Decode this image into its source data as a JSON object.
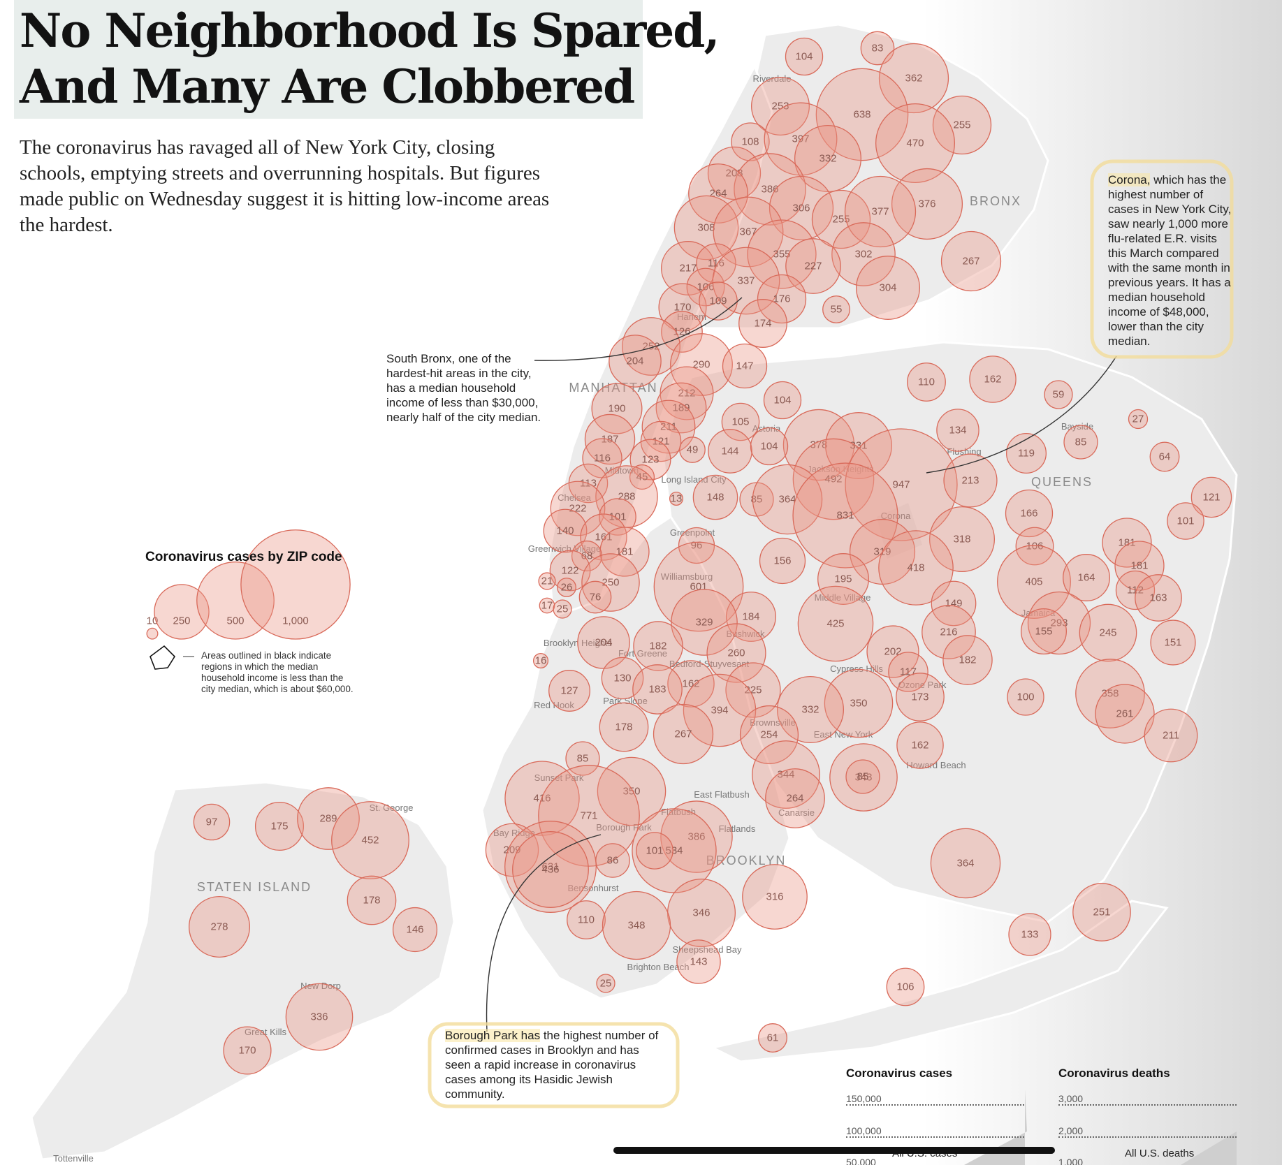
{
  "headline": [
    "No Neighborhood Is Spared,",
    "And Many Are Clobbered"
  ],
  "subhead": "The coronavirus has ravaged all of New York City, closing schools, emptying streets and overrunning hospitals. But figures made public on Wednesday suggest it is hitting low-income areas the hardest.",
  "annotations": {
    "south_bronx": "South Bronx, one of the hardest-hit areas in the city, has a median household income of less than $30,000, nearly half of the city median.",
    "corona_highlight": "Corona,",
    "corona_rest": " which has the highest number of cases in New York City, saw nearly 1,000 more flu-related E.R. visits this March compared with the same month in previous years. It has a median household income of $48,000, lower than the city median.",
    "borough_park_highlight": "Borough Park has",
    "borough_park_rest": " the highest number of confirmed cases in Brooklyn and has seen a rapid increase in coronavirus cases among its Hasidic Jewish community."
  },
  "legend": {
    "title": "Coronavirus cases by ZIP code",
    "sizes": [
      {
        "label": "10",
        "value": 10
      },
      {
        "label": "250",
        "value": 250
      },
      {
        "label": "500",
        "value": 500
      },
      {
        "label": "1,000",
        "value": 1000
      }
    ],
    "note": "Areas outlined in black indicate regions in which the median household income is less than the city median, which is about $60,000."
  },
  "boroughs": [
    "MANHATTAN",
    "BRONX",
    "QUEENS",
    "BROOKLYN",
    "STATEN ISLAND"
  ],
  "places": [
    "Riverdale",
    "Harlem",
    "Midtown",
    "Chelsea",
    "Greenwich Village",
    "Astoria",
    "Long Island City",
    "Greenpoint",
    "Williamsburg",
    "Jackson Heights",
    "Flushing",
    "Bayside",
    "Corona",
    "Middle Village",
    "Jamaica",
    "Bushwick",
    "Brooklyn Heights",
    "Fort Greene",
    "Bedford-Stuyvesant",
    "Cypress Hills",
    "Ozone Park",
    "Red Hook",
    "Park Slope",
    "Brownsville",
    "East New York",
    "Howard Beach",
    "Sunset Park",
    "East Flatbush",
    "Flatbush",
    "Canarsie",
    "Flatlands",
    "Bay Ridge",
    "Borough Park",
    "Bensonhurst",
    "Sheepshead Bay",
    "Brighton Beach",
    "St. George",
    "New Dorp",
    "Great Kills",
    "Tottenville"
  ],
  "zip_cases": [
    104,
    83,
    362,
    253,
    638,
    255,
    108,
    397,
    332,
    470,
    208,
    386,
    376,
    264,
    306,
    255,
    377,
    308,
    367,
    355,
    302,
    267,
    217,
    116,
    227,
    106,
    337,
    304,
    170,
    109,
    176,
    55,
    126,
    174,
    252,
    204,
    290,
    147,
    212,
    110,
    162,
    190,
    189,
    104,
    59,
    211,
    105,
    134,
    27,
    187,
    121,
    378,
    331,
    119,
    85,
    116,
    123,
    49,
    144,
    104,
    64,
    45,
    492,
    947,
    213,
    113,
    288,
    85,
    364,
    148,
    13,
    831,
    166,
    121,
    222,
    101,
    101,
    140,
    161,
    318,
    106,
    181,
    96,
    319,
    181,
    68,
    418,
    405,
    122,
    181,
    250,
    156,
    195,
    164,
    112,
    21,
    26,
    601,
    163,
    76,
    17,
    25,
    184,
    329,
    149,
    425,
    293,
    155,
    245,
    151,
    204,
    182,
    260,
    16,
    202,
    216,
    182,
    130,
    162,
    117,
    173,
    127,
    183,
    225,
    350,
    100,
    358,
    178,
    394,
    332,
    261,
    267,
    254,
    211,
    85,
    162,
    343,
    85,
    344,
    350,
    264,
    416,
    771,
    386,
    209,
    534,
    631,
    86,
    101,
    364,
    436,
    316,
    251,
    346,
    110,
    348,
    133,
    143,
    25,
    106,
    61,
    97,
    175,
    289,
    452,
    178,
    278,
    146,
    336,
    170
  ],
  "trend": {
    "cases_title": "Coronavirus cases",
    "deaths_title": "Coronavirus deaths",
    "cases_ticks": [
      "150,000",
      "100,000",
      "50,000"
    ],
    "deaths_ticks": [
      "3,000",
      "2,000",
      "1,000"
    ],
    "cases_series": "All U.S. cases",
    "deaths_series": "All U.S. deaths"
  },
  "colors": {
    "bubble_fill": "#eb9687",
    "bubble_stroke": "#d96a5a",
    "highlight": "#fae6a0"
  }
}
